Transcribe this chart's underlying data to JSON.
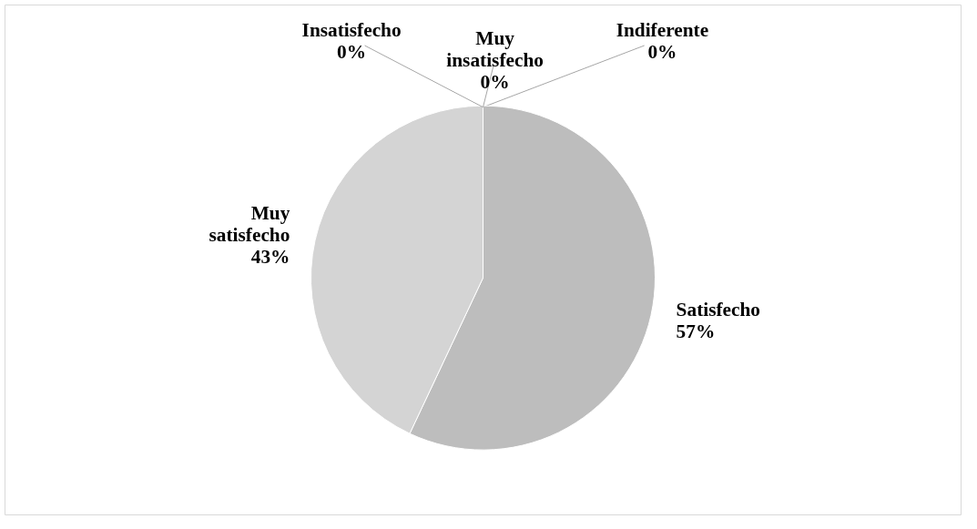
{
  "chart_data": {
    "type": "pie",
    "categories": [
      "Indiferente",
      "Satisfecho",
      "Muy satisfecho",
      "Insatisfecho",
      "Muy insatisfecho"
    ],
    "values": [
      0,
      57,
      43,
      0,
      0
    ],
    "value_labels": [
      "0%",
      "57%",
      "43%",
      "0%",
      "0%"
    ],
    "colors": [
      "#a6a6a6",
      "#bdbdbd",
      "#d4d4d4",
      "#9a9a9a",
      "#8c8c8c"
    ]
  }
}
